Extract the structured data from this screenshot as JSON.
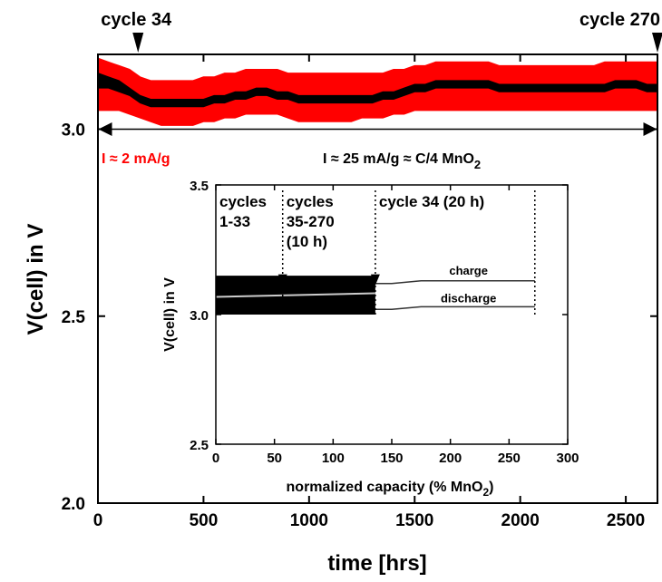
{
  "chart_data": [
    {
      "type": "line",
      "xlabel": "time [hrs]",
      "ylabel": "V(cell) in V",
      "xlim": [
        0,
        2650
      ],
      "ylim": [
        2.0,
        3.2
      ],
      "xticks": [
        0,
        500,
        1000,
        1500,
        2000,
        2500
      ],
      "yticks": [
        2.0,
        2.5,
        3.0
      ],
      "xtick_labels": [
        "0",
        "500",
        "1000",
        "1500",
        "2000",
        "2500"
      ],
      "ytick_labels": [
        "2.0",
        "2.5",
        "3.0"
      ],
      "series": [
        {
          "color": "#ff0000",
          "x": [
            0,
            50,
            100,
            150,
            200,
            250,
            300,
            350,
            400,
            450,
            500,
            550,
            600,
            650,
            700,
            750,
            800,
            850,
            900,
            950,
            1000,
            1050,
            1100,
            1150,
            1200,
            1250,
            1300,
            1350,
            1400,
            1450,
            1500,
            1550,
            1600,
            1650,
            1700,
            1750,
            1800,
            1850,
            1900,
            1950,
            2000,
            2050,
            2100,
            2150,
            2200,
            2250,
            2300,
            2350,
            2400,
            2450,
            2500,
            2550,
            2600,
            2650
          ],
          "upper": [
            3.19,
            3.18,
            3.17,
            3.16,
            3.14,
            3.13,
            3.13,
            3.13,
            3.13,
            3.13,
            3.14,
            3.14,
            3.15,
            3.15,
            3.16,
            3.16,
            3.16,
            3.16,
            3.15,
            3.15,
            3.15,
            3.15,
            3.15,
            3.15,
            3.15,
            3.15,
            3.15,
            3.15,
            3.16,
            3.16,
            3.17,
            3.17,
            3.18,
            3.18,
            3.18,
            3.18,
            3.18,
            3.18,
            3.17,
            3.17,
            3.17,
            3.17,
            3.17,
            3.17,
            3.17,
            3.17,
            3.17,
            3.17,
            3.18,
            3.18,
            3.18,
            3.18,
            3.18,
            3.18
          ],
          "lower": [
            3.05,
            3.05,
            3.05,
            3.04,
            3.03,
            3.02,
            3.01,
            3.01,
            3.01,
            3.01,
            3.02,
            3.02,
            3.03,
            3.03,
            3.04,
            3.04,
            3.04,
            3.04,
            3.03,
            3.02,
            3.02,
            3.02,
            3.02,
            3.02,
            3.02,
            3.03,
            3.03,
            3.03,
            3.04,
            3.04,
            3.05,
            3.05,
            3.05,
            3.05,
            3.05,
            3.05,
            3.05,
            3.05,
            3.05,
            3.05,
            3.05,
            3.05,
            3.05,
            3.05,
            3.05,
            3.05,
            3.05,
            3.05,
            3.05,
            3.05,
            3.05,
            3.05,
            3.05,
            3.05
          ]
        },
        {
          "color": "#000000",
          "x": [
            0,
            50,
            100,
            150,
            200,
            250,
            300,
            350,
            400,
            450,
            500,
            550,
            600,
            650,
            700,
            750,
            800,
            850,
            900,
            950,
            1000,
            1050,
            1100,
            1150,
            1200,
            1250,
            1300,
            1350,
            1400,
            1450,
            1500,
            1550,
            1600,
            1650,
            1700,
            1750,
            1800,
            1850,
            1900,
            1950,
            2000,
            2050,
            2100,
            2150,
            2200,
            2250,
            2300,
            2350,
            2400,
            2450,
            2500,
            2550,
            2600,
            2650
          ],
          "upper": [
            3.15,
            3.14,
            3.13,
            3.11,
            3.09,
            3.08,
            3.08,
            3.08,
            3.08,
            3.08,
            3.08,
            3.09,
            3.09,
            3.1,
            3.1,
            3.11,
            3.11,
            3.1,
            3.1,
            3.09,
            3.09,
            3.09,
            3.09,
            3.09,
            3.09,
            3.09,
            3.09,
            3.1,
            3.1,
            3.11,
            3.12,
            3.12,
            3.13,
            3.13,
            3.13,
            3.13,
            3.13,
            3.13,
            3.12,
            3.12,
            3.12,
            3.12,
            3.12,
            3.12,
            3.12,
            3.12,
            3.12,
            3.12,
            3.12,
            3.13,
            3.13,
            3.13,
            3.12,
            3.12
          ],
          "lower": [
            3.11,
            3.11,
            3.1,
            3.09,
            3.07,
            3.06,
            3.06,
            3.06,
            3.06,
            3.06,
            3.06,
            3.07,
            3.07,
            3.08,
            3.08,
            3.09,
            3.09,
            3.08,
            3.08,
            3.07,
            3.07,
            3.07,
            3.07,
            3.07,
            3.07,
            3.07,
            3.07,
            3.08,
            3.08,
            3.09,
            3.1,
            3.1,
            3.11,
            3.11,
            3.11,
            3.11,
            3.11,
            3.11,
            3.1,
            3.1,
            3.1,
            3.1,
            3.1,
            3.1,
            3.1,
            3.1,
            3.1,
            3.1,
            3.1,
            3.11,
            3.11,
            3.11,
            3.1,
            3.1
          ]
        }
      ],
      "annotations": {
        "cycle34": {
          "label": "cycle 34",
          "x": 190
        },
        "cycle270": {
          "label": "cycle 270",
          "x": 2650
        },
        "current_low_prefix": "I ≈ 2 mA/g",
        "current_high_main": "I ≈ 25 mA/g ≈ C/4 MnO",
        "current_high_sub": "2",
        "current_high_arrow": {
          "from": 0,
          "to": 2650,
          "y": 3.0
        }
      }
    },
    {
      "type": "line",
      "inset": true,
      "xlabel_main": "normalized capacity (% MnO",
      "xlabel_sub": "2",
      "xlabel_end": ")",
      "ylabel": "V(cell) in V",
      "xlim": [
        0,
        300
      ],
      "ylim": [
        2.5,
        3.5
      ],
      "xticks": [
        0,
        50,
        100,
        150,
        200,
        250,
        300
      ],
      "yticks": [
        2.5,
        3.0,
        3.5
      ],
      "xtick_labels": [
        "0",
        "50",
        "100",
        "150",
        "200",
        "250",
        "300"
      ],
      "ytick_labels": [
        "2.5",
        "3.0",
        "3.5"
      ],
      "regions": [
        {
          "label_lines": [
            "cycles",
            "1-33"
          ],
          "x_end": 57
        },
        {
          "label_lines": [
            "cycles",
            "35-270",
            "(10 h)"
          ],
          "x_end": 136
        },
        {
          "label_lines": [
            "cycle 34 (20 h)"
          ],
          "x_end": 272
        }
      ],
      "band": {
        "x": [
          0,
          136
        ],
        "upper": 3.15,
        "lower": 3.0
      },
      "series": [
        {
          "name": "charge",
          "x": [
            136,
            150,
            175,
            200,
            225,
            250,
            272
          ],
          "y": [
            3.12,
            3.12,
            3.13,
            3.13,
            3.13,
            3.13,
            3.13
          ]
        },
        {
          "name": "discharge",
          "x": [
            136,
            150,
            175,
            200,
            225,
            250,
            272
          ],
          "y": [
            3.02,
            3.02,
            3.03,
            3.03,
            3.03,
            3.03,
            3.03
          ]
        }
      ]
    }
  ]
}
